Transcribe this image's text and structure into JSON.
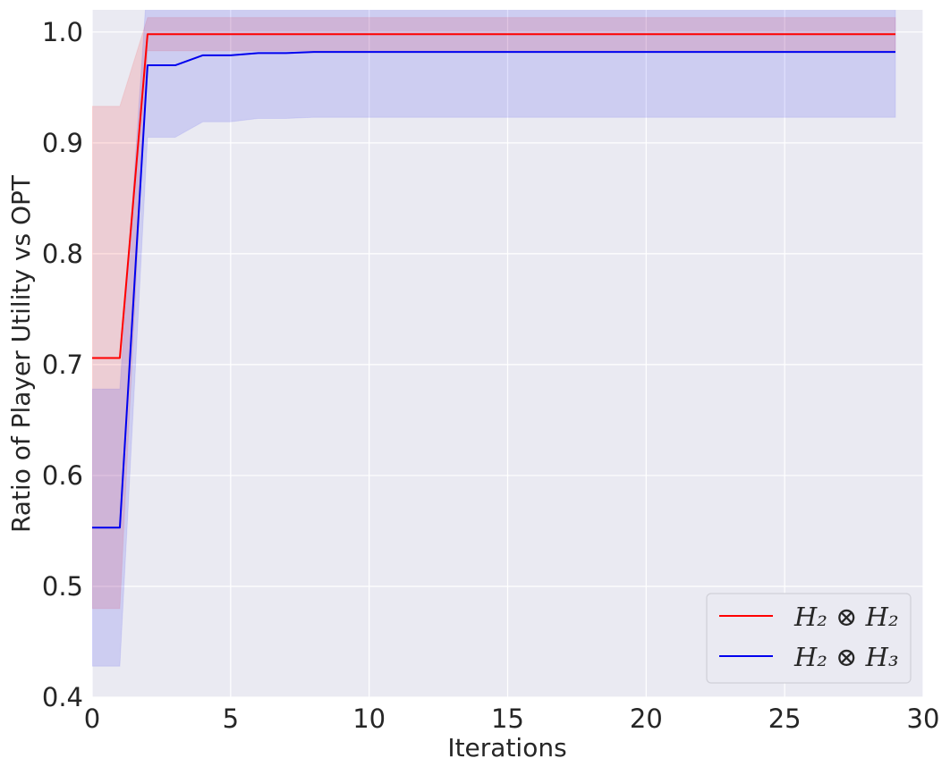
{
  "chart_data": {
    "type": "line",
    "title": "",
    "xlabel": "Iterations",
    "ylabel": "Ratio of Player Utility vs OPT",
    "xlim": [
      0,
      30
    ],
    "ylim": [
      0.4,
      1.02
    ],
    "xticks": [
      0,
      5,
      10,
      15,
      20,
      25,
      30
    ],
    "yticks": [
      0.4,
      0.5,
      0.6,
      0.7,
      0.8,
      0.9,
      1.0
    ],
    "xtick_labels": [
      "0",
      "5",
      "10",
      "15",
      "20",
      "25",
      "30"
    ],
    "ytick_labels": [
      "0.4",
      "0.5",
      "0.6",
      "0.7",
      "0.8",
      "0.9",
      "1.0"
    ],
    "grid": true,
    "legend_position": "bottom-right",
    "background": "#eaeaf2",
    "x": [
      0,
      1,
      2,
      3,
      4,
      5,
      6,
      7,
      8,
      9,
      10,
      11,
      12,
      13,
      14,
      15,
      16,
      17,
      18,
      19,
      20,
      21,
      22,
      23,
      24,
      25,
      26,
      27,
      28,
      29
    ],
    "series": [
      {
        "name": "H₂ ⊗ H₂",
        "color": "#ff0000",
        "values": [
          0.706,
          0.706,
          0.998,
          0.998,
          0.998,
          0.998,
          0.998,
          0.998,
          0.998,
          0.998,
          0.998,
          0.998,
          0.998,
          0.998,
          0.998,
          0.998,
          0.998,
          0.998,
          0.998,
          0.998,
          0.998,
          0.998,
          0.998,
          0.998,
          0.998,
          0.998,
          0.998,
          0.998,
          0.998,
          0.998
        ],
        "band_low": [
          0.48,
          0.48,
          0.983,
          0.983,
          0.983,
          0.983,
          0.983,
          0.983,
          0.983,
          0.983,
          0.983,
          0.983,
          0.983,
          0.983,
          0.983,
          0.983,
          0.983,
          0.983,
          0.983,
          0.983,
          0.983,
          0.983,
          0.983,
          0.983,
          0.983,
          0.983,
          0.983,
          0.983,
          0.983,
          0.983
        ],
        "band_high": [
          0.933,
          0.933,
          1.013,
          1.013,
          1.013,
          1.013,
          1.013,
          1.013,
          1.013,
          1.013,
          1.013,
          1.013,
          1.013,
          1.013,
          1.013,
          1.013,
          1.013,
          1.013,
          1.013,
          1.013,
          1.013,
          1.013,
          1.013,
          1.013,
          1.013,
          1.013,
          1.013,
          1.013,
          1.013,
          1.013
        ]
      },
      {
        "name": "H₂ ⊗ H₃",
        "color": "#0000ee",
        "values": [
          0.553,
          0.553,
          0.97,
          0.97,
          0.979,
          0.979,
          0.981,
          0.981,
          0.982,
          0.982,
          0.982,
          0.982,
          0.982,
          0.982,
          0.982,
          0.982,
          0.982,
          0.982,
          0.982,
          0.982,
          0.982,
          0.982,
          0.982,
          0.982,
          0.982,
          0.982,
          0.982,
          0.982,
          0.982,
          0.982
        ],
        "band_low": [
          0.428,
          0.428,
          0.905,
          0.905,
          0.919,
          0.919,
          0.922,
          0.922,
          0.923,
          0.923,
          0.923,
          0.923,
          0.923,
          0.923,
          0.923,
          0.923,
          0.923,
          0.923,
          0.923,
          0.923,
          0.923,
          0.923,
          0.923,
          0.923,
          0.923,
          0.923,
          0.923,
          0.923,
          0.923,
          0.923
        ],
        "band_high": [
          0.678,
          0.678,
          1.05,
          1.05,
          1.05,
          1.05,
          1.05,
          1.05,
          1.05,
          1.05,
          1.05,
          1.05,
          1.05,
          1.05,
          1.05,
          1.05,
          1.05,
          1.05,
          1.05,
          1.05,
          1.05,
          1.05,
          1.05,
          1.05,
          1.05,
          1.05,
          1.05,
          1.05,
          1.05,
          1.05
        ]
      }
    ]
  }
}
